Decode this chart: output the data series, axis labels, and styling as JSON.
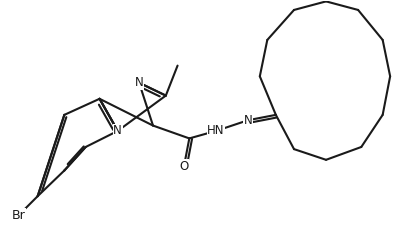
{
  "background_color": "#ffffff",
  "line_color": "#1a1a1a",
  "lw": 1.5,
  "fs": 8.5,
  "figsize": [
    4.0,
    2.34
  ],
  "dpi": 100,
  "xlim": [
    0,
    10
  ],
  "ylim": [
    0,
    5.85
  ]
}
